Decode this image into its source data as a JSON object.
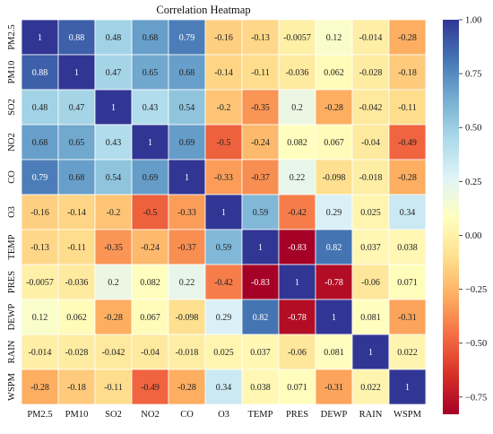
{
  "chart_data": {
    "type": "heatmap",
    "title": "Correlation Heatmap",
    "variables": [
      "PM2.5",
      "PM10",
      "SO2",
      "NO2",
      "CO",
      "O3",
      "TEMP",
      "PRES",
      "DEWP",
      "RAIN",
      "WSPM"
    ],
    "matrix": [
      [
        1,
        0.88,
        0.48,
        0.68,
        0.79,
        -0.16,
        -0.13,
        -0.0057,
        0.12,
        -0.014,
        -0.28
      ],
      [
        0.88,
        1,
        0.47,
        0.65,
        0.68,
        -0.14,
        -0.11,
        -0.036,
        0.062,
        -0.028,
        -0.18
      ],
      [
        0.48,
        0.47,
        1,
        0.43,
        0.54,
        -0.2,
        -0.35,
        0.2,
        -0.28,
        -0.042,
        -0.11
      ],
      [
        0.68,
        0.65,
        0.43,
        1,
        0.69,
        -0.5,
        -0.24,
        0.082,
        0.067,
        -0.04,
        -0.49
      ],
      [
        0.79,
        0.68,
        0.54,
        0.69,
        1,
        -0.33,
        -0.37,
        0.22,
        -0.098,
        -0.018,
        -0.28
      ],
      [
        -0.16,
        -0.14,
        -0.2,
        -0.5,
        -0.33,
        1,
        0.59,
        -0.42,
        0.29,
        0.025,
        0.34
      ],
      [
        -0.13,
        -0.11,
        -0.35,
        -0.24,
        -0.37,
        0.59,
        1,
        -0.83,
        0.82,
        0.037,
        0.038
      ],
      [
        -0.0057,
        -0.036,
        0.2,
        0.082,
        0.22,
        -0.42,
        -0.83,
        1,
        -0.78,
        -0.06,
        0.071
      ],
      [
        0.12,
        0.062,
        -0.28,
        0.067,
        -0.098,
        0.29,
        0.82,
        -0.78,
        1,
        0.081,
        -0.31
      ],
      [
        -0.014,
        -0.028,
        -0.042,
        -0.04,
        -0.018,
        0.025,
        0.037,
        -0.06,
        0.081,
        1,
        0.022
      ],
      [
        -0.28,
        -0.18,
        -0.11,
        -0.49,
        -0.28,
        0.34,
        0.038,
        0.071,
        -0.31,
        0.022,
        1
      ]
    ],
    "colormap": "RdYlBu",
    "vmin": -0.83,
    "vmax": 1.0,
    "colorbar_ticks": [
      1.0,
      0.75,
      0.5,
      0.25,
      0.0,
      -0.25,
      -0.5,
      -0.75
    ],
    "colorbar_tick_labels": [
      "1.00",
      "0.75",
      "0.50",
      "0.25",
      "0.00",
      "−0.25",
      "−0.50",
      "−0.75"
    ],
    "grid": true
  }
}
